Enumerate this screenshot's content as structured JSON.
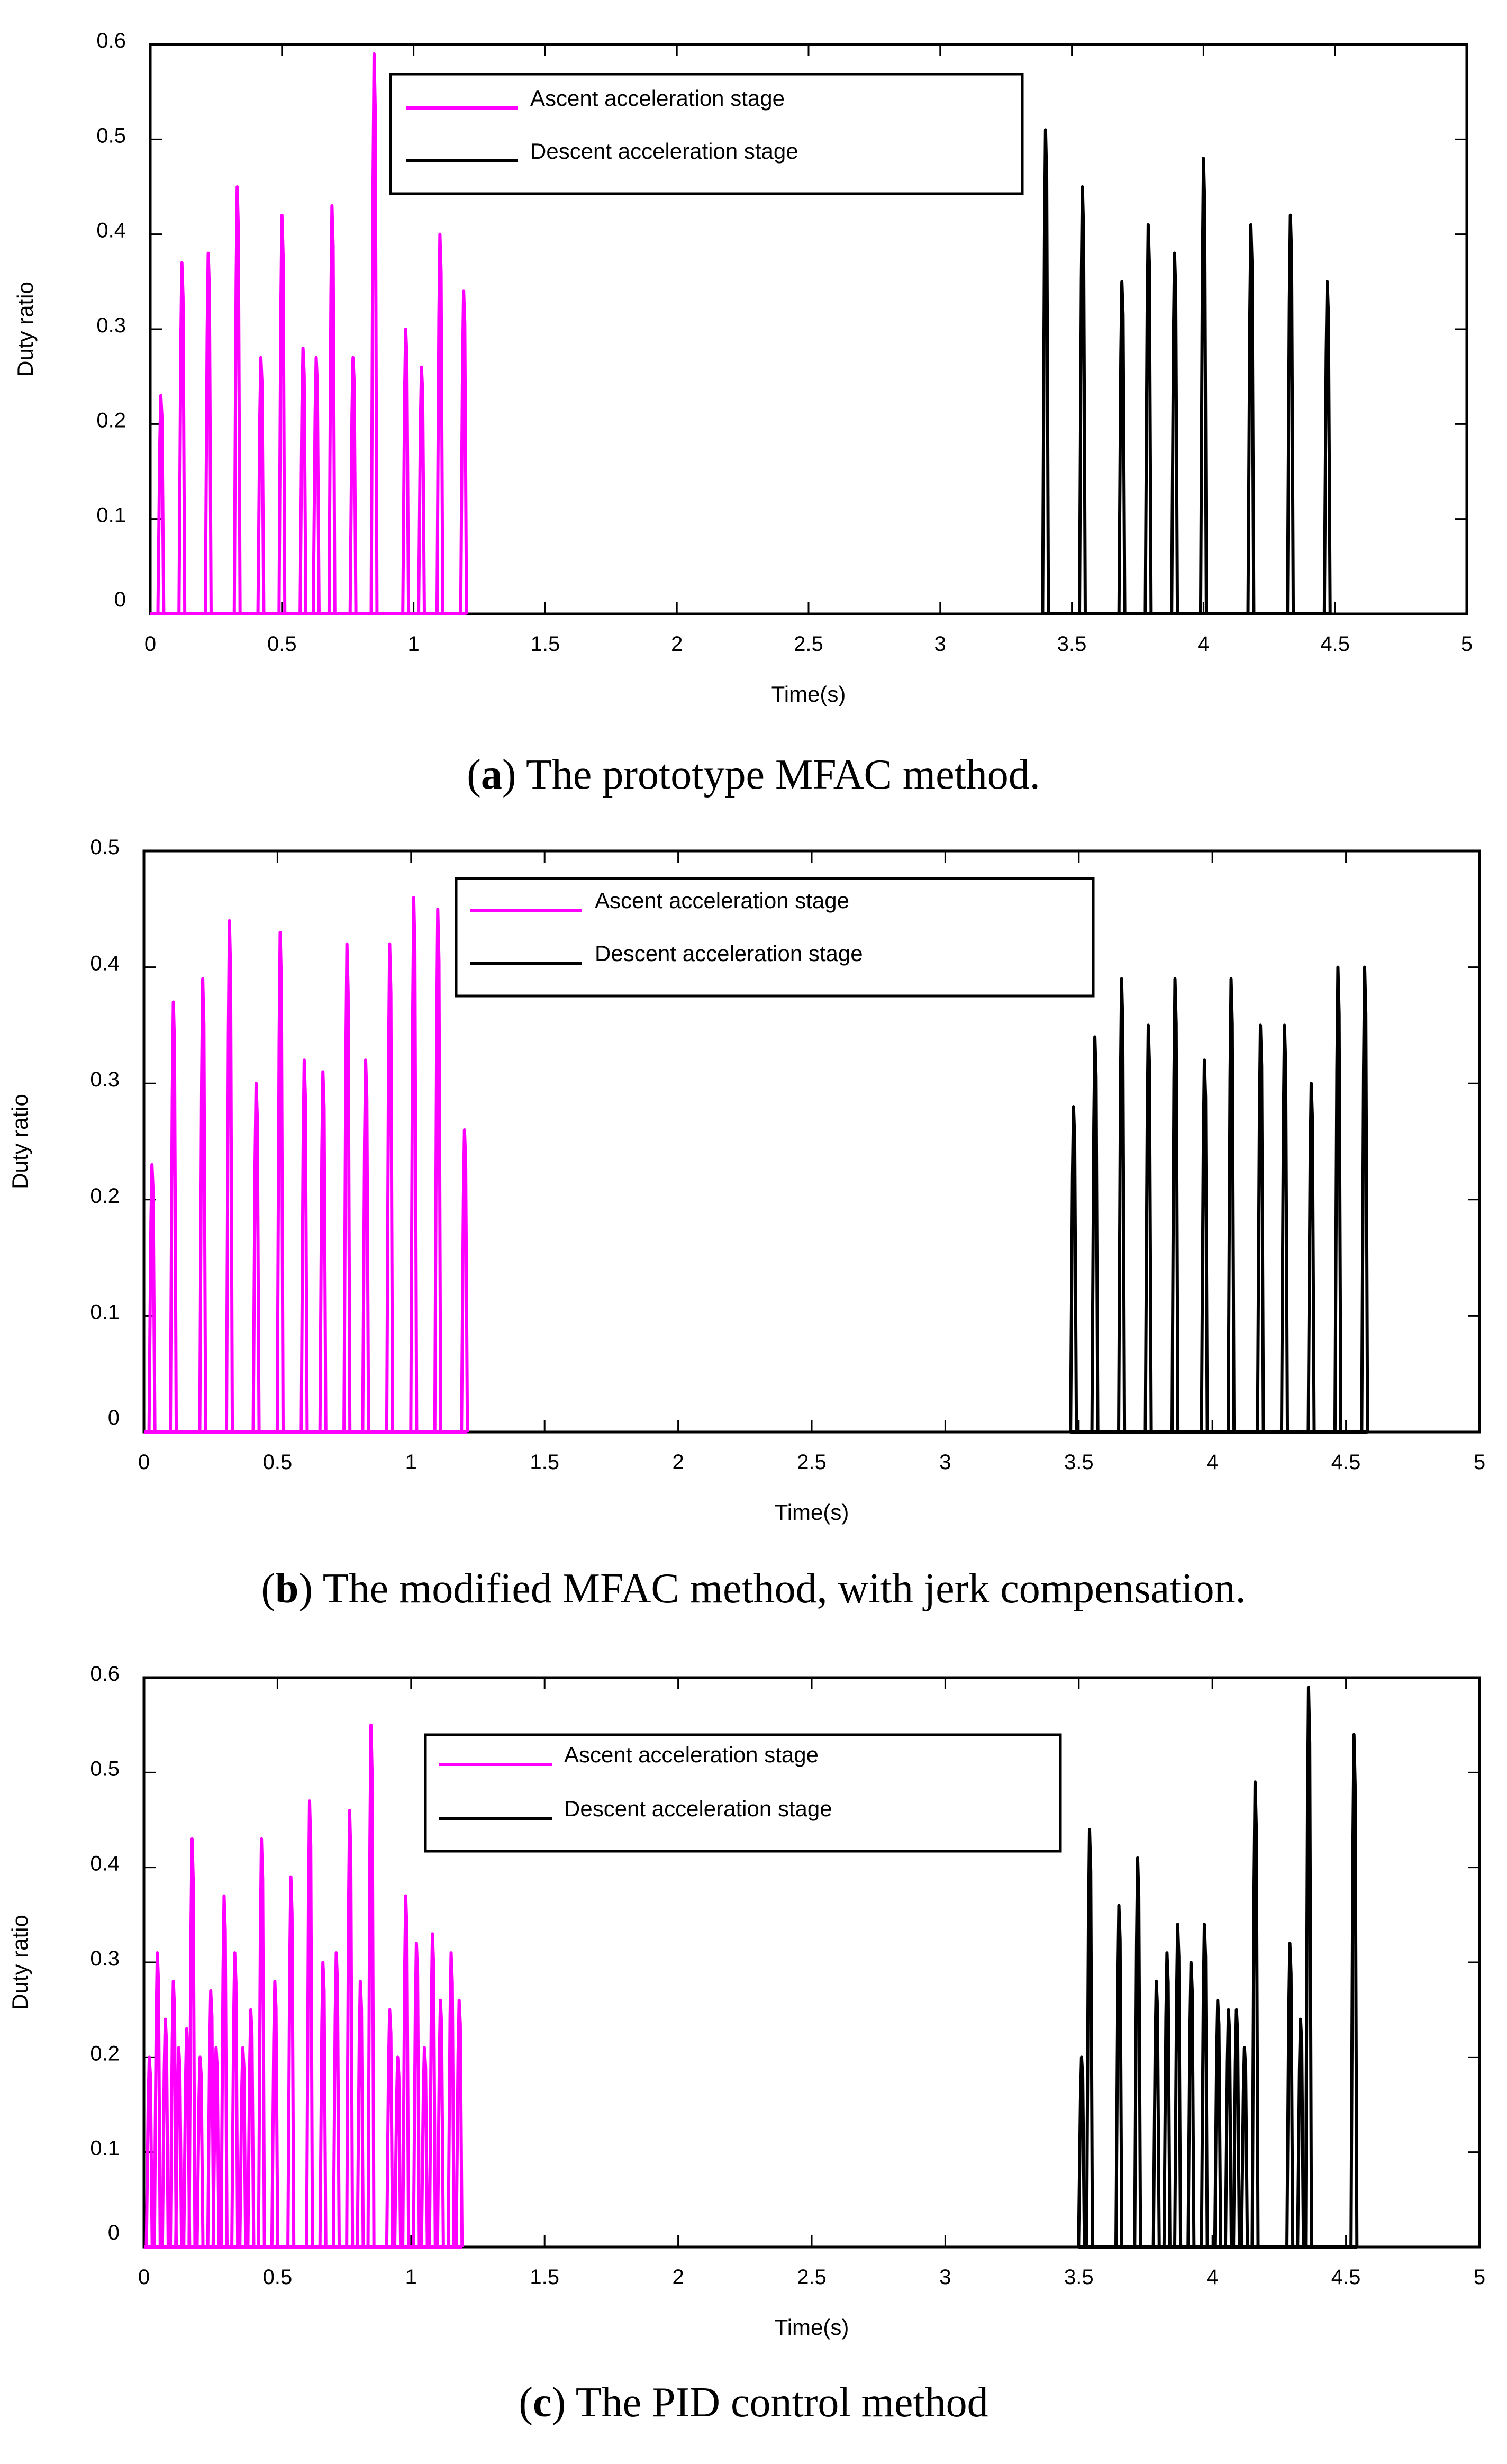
{
  "colors": {
    "ascent": "#ff00ff",
    "descent": "#000000"
  },
  "chart_data": [
    {
      "type": "line",
      "caption": {
        "prefix": "(",
        "letter": "a",
        "text": ") The prototype MFAC method."
      },
      "xlabel": "Time(s)",
      "ylabel": "Duty ratio",
      "xlim": [
        0,
        5
      ],
      "ylim": [
        0,
        0.6
      ],
      "xticks": [
        "0",
        "0.5",
        "1",
        "1.5",
        "2",
        "2.5",
        "3",
        "3.5",
        "4",
        "4.5",
        "5"
      ],
      "yticks": [
        "0",
        "0.1",
        "0.2",
        "0.3",
        "0.4",
        "0.5",
        "0.6"
      ],
      "legend_position": "top-center",
      "series": [
        {
          "name": "Ascent acceleration stage",
          "peaks": [
            [
              0.04,
              0.23
            ],
            [
              0.12,
              0.37
            ],
            [
              0.22,
              0.38
            ],
            [
              0.33,
              0.45
            ],
            [
              0.42,
              0.27
            ],
            [
              0.5,
              0.42
            ],
            [
              0.58,
              0.28
            ],
            [
              0.63,
              0.27
            ],
            [
              0.69,
              0.43
            ],
            [
              0.77,
              0.27
            ],
            [
              0.85,
              0.59
            ],
            [
              0.97,
              0.3
            ],
            [
              1.03,
              0.26
            ],
            [
              1.1,
              0.4
            ],
            [
              1.19,
              0.34
            ]
          ]
        },
        {
          "name": "Descent acceleration stage",
          "peaks": [
            [
              3.4,
              0.51
            ],
            [
              3.54,
              0.45
            ],
            [
              3.69,
              0.35
            ],
            [
              3.79,
              0.41
            ],
            [
              3.89,
              0.38
            ],
            [
              4.0,
              0.48
            ],
            [
              4.18,
              0.41
            ],
            [
              4.33,
              0.42
            ],
            [
              4.47,
              0.35
            ]
          ]
        }
      ]
    },
    {
      "type": "line",
      "caption": {
        "prefix": "(",
        "letter": "b",
        "text": ") The modified MFAC method, with jerk compensation."
      },
      "xlabel": "Time(s)",
      "ylabel": "Duty ratio",
      "xlim": [
        0,
        5
      ],
      "ylim": [
        0,
        0.5
      ],
      "xticks": [
        "0",
        "0.5",
        "1",
        "1.5",
        "2",
        "2.5",
        "3",
        "3.5",
        "4",
        "4.5",
        "5"
      ],
      "yticks": [
        "0",
        "0.1",
        "0.2",
        "0.3",
        "0.4",
        "0.5"
      ],
      "legend_position": "top-center",
      "series": [
        {
          "name": "Ascent acceleration stage",
          "peaks": [
            [
              0.03,
              0.23
            ],
            [
              0.11,
              0.37
            ],
            [
              0.22,
              0.39
            ],
            [
              0.32,
              0.44
            ],
            [
              0.42,
              0.3
            ],
            [
              0.51,
              0.43
            ],
            [
              0.6,
              0.32
            ],
            [
              0.67,
              0.31
            ],
            [
              0.76,
              0.42
            ],
            [
              0.83,
              0.32
            ],
            [
              0.92,
              0.42
            ],
            [
              1.01,
              0.46
            ],
            [
              1.1,
              0.45
            ],
            [
              1.2,
              0.26
            ]
          ]
        },
        {
          "name": "Descent acceleration stage",
          "peaks": [
            [
              3.48,
              0.28
            ],
            [
              3.56,
              0.34
            ],
            [
              3.66,
              0.39
            ],
            [
              3.76,
              0.35
            ],
            [
              3.86,
              0.39
            ],
            [
              3.97,
              0.32
            ],
            [
              4.07,
              0.39
            ],
            [
              4.18,
              0.35
            ],
            [
              4.27,
              0.35
            ],
            [
              4.37,
              0.3
            ],
            [
              4.47,
              0.4
            ],
            [
              4.57,
              0.4
            ]
          ]
        }
      ]
    },
    {
      "type": "line",
      "caption": {
        "prefix": "(",
        "letter": "c",
        "text": ") The PID control method"
      },
      "xlabel": "Time(s)",
      "ylabel": "Duty ratio",
      "xlim": [
        0,
        5
      ],
      "ylim": [
        0,
        0.6
      ],
      "xticks": [
        "0",
        "0.5",
        "1",
        "1.5",
        "2",
        "2.5",
        "3",
        "3.5",
        "4",
        "4.5",
        "5"
      ],
      "yticks": [
        "0",
        "0.1",
        "0.2",
        "0.3",
        "0.4",
        "0.5",
        "0.6"
      ],
      "legend_position": "top-center",
      "series": [
        {
          "name": "Ascent acceleration stage",
          "peaks": [
            [
              0.02,
              0.2
            ],
            [
              0.05,
              0.31
            ],
            [
              0.08,
              0.24
            ],
            [
              0.11,
              0.28
            ],
            [
              0.13,
              0.21
            ],
            [
              0.16,
              0.23
            ],
            [
              0.18,
              0.43
            ],
            [
              0.21,
              0.2
            ],
            [
              0.25,
              0.27
            ],
            [
              0.27,
              0.21
            ],
            [
              0.3,
              0.37
            ],
            [
              0.34,
              0.31
            ],
            [
              0.37,
              0.21
            ],
            [
              0.4,
              0.25
            ],
            [
              0.44,
              0.43
            ],
            [
              0.49,
              0.28
            ],
            [
              0.55,
              0.39
            ],
            [
              0.62,
              0.47
            ],
            [
              0.67,
              0.3
            ],
            [
              0.72,
              0.31
            ],
            [
              0.77,
              0.46
            ],
            [
              0.81,
              0.28
            ],
            [
              0.85,
              0.55
            ],
            [
              0.92,
              0.25
            ],
            [
              0.95,
              0.2
            ],
            [
              0.98,
              0.37
            ],
            [
              1.02,
              0.32
            ],
            [
              1.05,
              0.21
            ],
            [
              1.08,
              0.33
            ],
            [
              1.11,
              0.26
            ],
            [
              1.15,
              0.31
            ],
            [
              1.18,
              0.26
            ]
          ]
        },
        {
          "name": "Descent acceleration stage",
          "peaks": [
            [
              3.51,
              0.2
            ],
            [
              3.54,
              0.44
            ],
            [
              3.65,
              0.36
            ],
            [
              3.72,
              0.41
            ],
            [
              3.79,
              0.28
            ],
            [
              3.83,
              0.31
            ],
            [
              3.87,
              0.34
            ],
            [
              3.92,
              0.3
            ],
            [
              3.97,
              0.34
            ],
            [
              4.02,
              0.26
            ],
            [
              4.06,
              0.25
            ],
            [
              4.09,
              0.25
            ],
            [
              4.12,
              0.21
            ],
            [
              4.16,
              0.49
            ],
            [
              4.29,
              0.32
            ],
            [
              4.33,
              0.24
            ],
            [
              4.36,
              0.59
            ],
            [
              4.53,
              0.54
            ]
          ]
        }
      ]
    }
  ]
}
